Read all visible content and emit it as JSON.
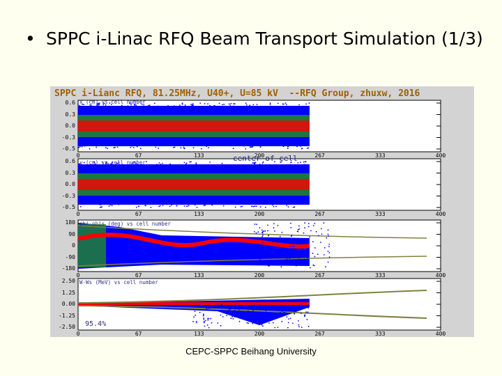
{
  "slide": {
    "bullet": "•",
    "title": "SPPC i-Linac RFQ Beam Transport Simulation (1/3)",
    "footer": "CEPC-SPPC Beihang University"
  },
  "figure": {
    "header": "SPPC i-Lianc RFQ, 81.25MHz, U40+, U=85 kV  --RFQ Group, zhuxw, 2016",
    "center_label": "center of cell",
    "transmission": "95.4%",
    "x_ticks": [
      "0",
      "67",
      "133",
      "200",
      "267",
      "333",
      "400"
    ],
    "panels": [
      {
        "label": "x (cm) vs cell number",
        "y_ticks": [
          "0.6",
          "0.3",
          "0.0",
          "-0.3",
          "-0.5"
        ]
      },
      {
        "label": "y (cm) vs cell number",
        "y_ticks": [
          "0.6",
          "0.3",
          "0.0",
          "-0.3",
          "-0.5"
        ]
      },
      {
        "label": "phi-phis (deg) vs cell number",
        "y_ticks": [
          "180",
          "90",
          "0",
          "-90",
          "-180"
        ]
      },
      {
        "label": "W-Ws (MeV) vs cell number",
        "y_ticks": [
          "2.50",
          "1.25",
          "0.00",
          "-1.25",
          "-2.50"
        ]
      }
    ],
    "colors": {
      "background": "#d3d3d3",
      "plot_area": "#ffffff",
      "particles_outer": "#0000ff",
      "particles_mid": "#228b22",
      "particles_core": "#ff0000",
      "envelope": "#808040",
      "header_text": "#a06000"
    }
  }
}
